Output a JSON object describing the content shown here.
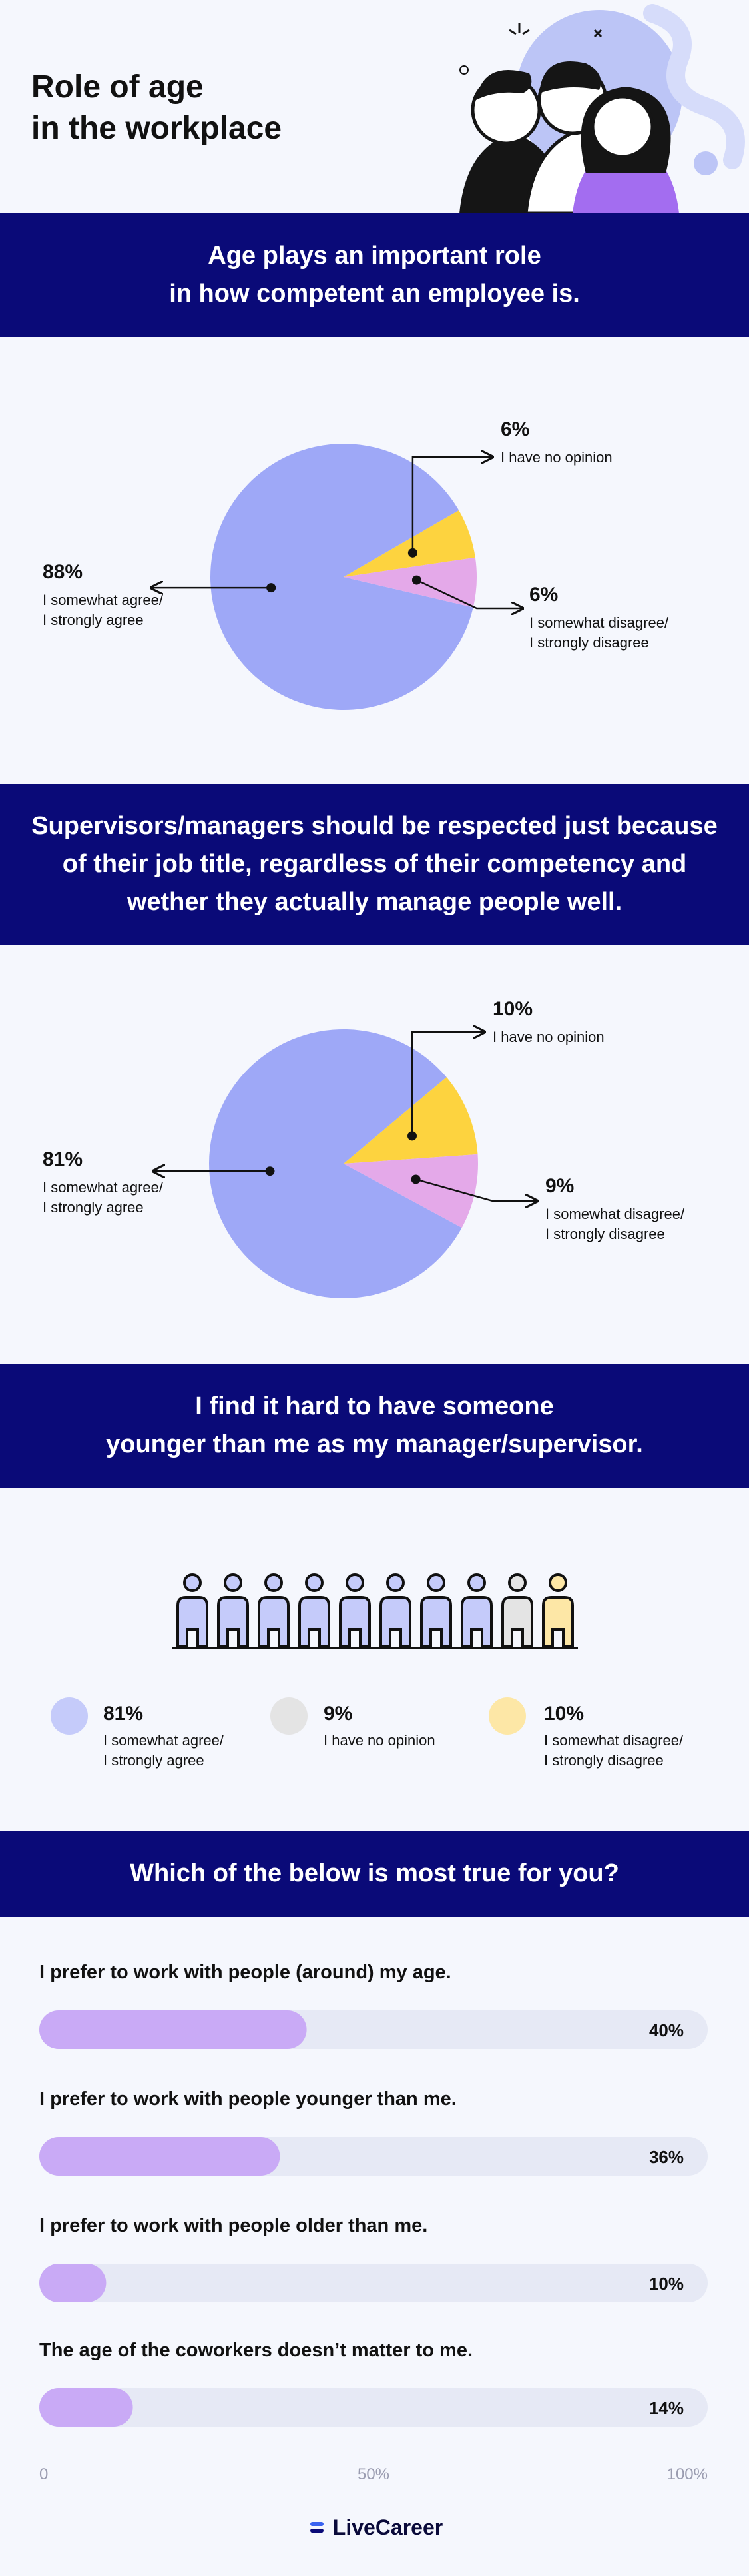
{
  "title": "Role of age\nin the workplace",
  "chart_data": [
    {
      "type": "pie",
      "title": "Age plays an important role\nin how competent an employee is.",
      "categories": [
        "I somewhat agree/\nI strongly agree",
        "I have no opinion",
        "I somewhat disagree/\nI strongly disagree"
      ],
      "values": [
        88,
        6,
        6
      ],
      "value_labels": [
        "88%",
        "6%",
        "6%"
      ],
      "colors": [
        "#9ea8f7",
        "#fdd33f",
        "#e4a9e9"
      ]
    },
    {
      "type": "pie",
      "title": "Supervisors/managers should be respected just because\nof their job title, regardless of their competency and\nwether they actually manage people well.",
      "categories": [
        "I somewhat agree/\nI strongly agree",
        "I have no opinion",
        "I somewhat disagree/\nI strongly disagree"
      ],
      "values": [
        81,
        10,
        9
      ],
      "value_labels": [
        "81%",
        "10%",
        "9%"
      ],
      "colors": [
        "#9ea8f7",
        "#fdd33f",
        "#e4a9e9"
      ]
    },
    {
      "type": "pictogram",
      "title": "I find it hard to have someone\nyounger than me as my manager/supervisor.",
      "categories": [
        "I somewhat agree/\nI strongly agree",
        "I have no opinion",
        "I somewhat disagree/\nI strongly disagree"
      ],
      "values": [
        81,
        9,
        10
      ],
      "value_labels": [
        "81%",
        "9%",
        "10%"
      ],
      "colors": [
        "#c5cbfa",
        "#e4e4e4",
        "#fde7a6"
      ]
    },
    {
      "type": "bar",
      "orientation": "horizontal",
      "title": "Which of the below is most true for you?",
      "categories": [
        "I prefer to work with people (around) my age.",
        "I prefer to work with people younger than me.",
        "I prefer to work with people older than me.",
        "The age of the coworkers doesn’t matter to me."
      ],
      "values": [
        40,
        36,
        10,
        14
      ],
      "value_labels": [
        "40%",
        "36%",
        "10%",
        "14%"
      ],
      "color": "#c9aaf6",
      "track_color": "#e6e9f5",
      "xlim": [
        0,
        100
      ],
      "xticks": [
        0,
        {
          "value": 50,
          "label": "50%"
        },
        {
          "value": 100,
          "label": "100%"
        }
      ]
    }
  ],
  "footer": {
    "logo": "LiveCareer"
  }
}
